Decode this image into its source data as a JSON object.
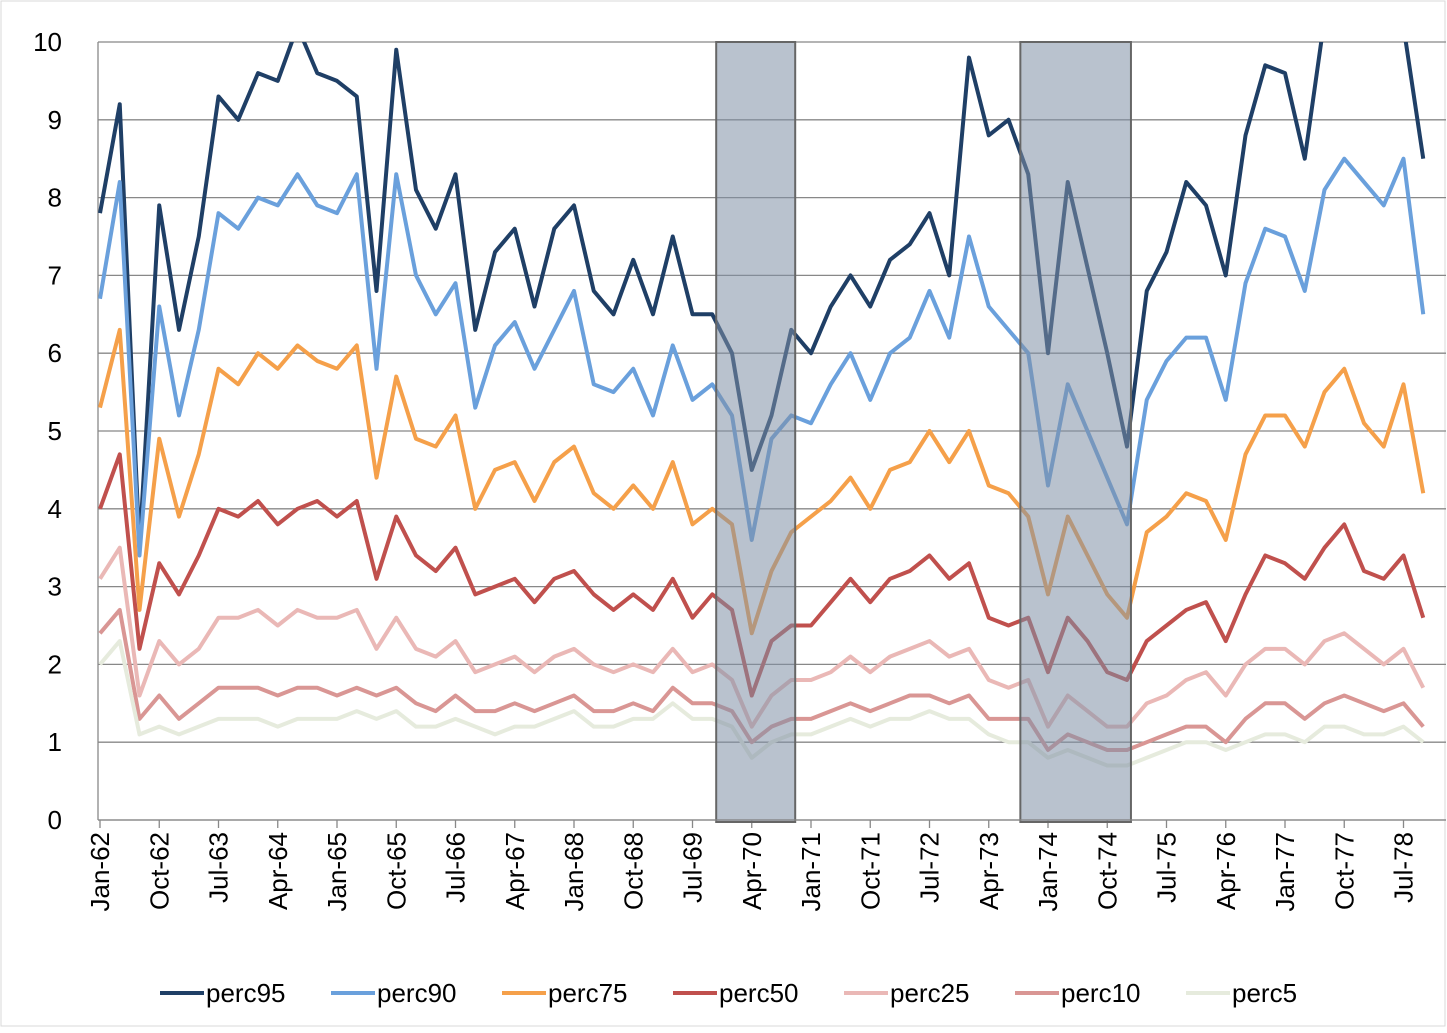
{
  "chart_data": {
    "type": "line",
    "categories": [
      "Jan-62",
      null,
      null,
      "Oct-62",
      null,
      null,
      "Jul-63",
      null,
      null,
      "Apr-64",
      null,
      null,
      "Jan-65",
      null,
      null,
      "Oct-65",
      null,
      null,
      "Jul-66",
      null,
      null,
      "Apr-67",
      null,
      null,
      "Jan-68",
      null,
      null,
      "Oct-68",
      null,
      null,
      "Jul-69",
      null,
      null,
      "Apr-70",
      null,
      null,
      "Jan-71",
      null,
      null,
      "Oct-71",
      null,
      null,
      "Jul-72",
      null,
      null,
      "Apr-73",
      null,
      null,
      "Jan-74",
      null,
      null,
      "Oct-74",
      null,
      null,
      "Jul-75",
      null,
      null,
      "Apr-76",
      null,
      null,
      "Jan-77",
      null,
      null,
      "Oct-77",
      null,
      null,
      "Jul-78",
      null
    ],
    "series": [
      {
        "name": "perc95",
        "color": "#1f3f66",
        "values": [
          7.8,
          9.2,
          3.5,
          7.9,
          6.3,
          7.5,
          9.3,
          9.0,
          9.6,
          9.5,
          10.2,
          9.6,
          9.5,
          9.3,
          6.8,
          9.9,
          8.1,
          7.6,
          8.3,
          6.3,
          7.3,
          7.6,
          6.6,
          7.6,
          7.9,
          6.8,
          6.5,
          7.2,
          6.5,
          7.5,
          6.5,
          6.5,
          6.0,
          4.5,
          5.2,
          6.3,
          6.0,
          6.6,
          7.0,
          6.6,
          7.2,
          7.4,
          7.8,
          7.0,
          9.8,
          8.8,
          9.0,
          8.3,
          6.0,
          8.2,
          7.1,
          6.0,
          4.8,
          6.8,
          7.3,
          8.2,
          7.9,
          7.0,
          8.8,
          9.7,
          9.6,
          8.5,
          10.3,
          10.5,
          10.3,
          10.2,
          10.2,
          8.5
        ]
      },
      {
        "name": "perc90",
        "color": "#6aa0dc",
        "values": [
          6.7,
          8.2,
          3.4,
          6.6,
          5.2,
          6.3,
          7.8,
          7.6,
          8.0,
          7.9,
          8.3,
          7.9,
          7.8,
          8.3,
          5.8,
          8.3,
          7.0,
          6.5,
          6.9,
          5.3,
          6.1,
          6.4,
          5.8,
          6.3,
          6.8,
          5.6,
          5.5,
          5.8,
          5.2,
          6.1,
          5.4,
          5.6,
          5.2,
          3.6,
          4.9,
          5.2,
          5.1,
          5.6,
          6.0,
          5.4,
          6.0,
          6.2,
          6.8,
          6.2,
          7.5,
          6.6,
          6.3,
          6.0,
          4.3,
          5.6,
          5.0,
          4.4,
          3.8,
          5.4,
          5.9,
          6.2,
          6.2,
          5.4,
          6.9,
          7.6,
          7.5,
          6.8,
          8.1,
          8.5,
          8.2,
          7.9,
          8.5,
          6.5
        ]
      },
      {
        "name": "perc75",
        "color": "#f5a04a",
        "values": [
          5.3,
          6.3,
          2.7,
          4.9,
          3.9,
          4.7,
          5.8,
          5.6,
          6.0,
          5.8,
          6.1,
          5.9,
          5.8,
          6.1,
          4.4,
          5.7,
          4.9,
          4.8,
          5.2,
          4.0,
          4.5,
          4.6,
          4.1,
          4.6,
          4.8,
          4.2,
          4.0,
          4.3,
          4.0,
          4.6,
          3.8,
          4.0,
          3.8,
          2.4,
          3.2,
          3.7,
          3.9,
          4.1,
          4.4,
          4.0,
          4.5,
          4.6,
          5.0,
          4.6,
          5.0,
          4.3,
          4.2,
          3.9,
          2.9,
          3.9,
          3.4,
          2.9,
          2.6,
          3.7,
          3.9,
          4.2,
          4.1,
          3.6,
          4.7,
          5.2,
          5.2,
          4.8,
          5.5,
          5.8,
          5.1,
          4.8,
          5.6,
          4.2
        ]
      },
      {
        "name": "perc50",
        "color": "#c0504d",
        "values": [
          4.0,
          4.7,
          2.2,
          3.3,
          2.9,
          3.4,
          4.0,
          3.9,
          4.1,
          3.8,
          4.0,
          4.1,
          3.9,
          4.1,
          3.1,
          3.9,
          3.4,
          3.2,
          3.5,
          2.9,
          3.0,
          3.1,
          2.8,
          3.1,
          3.2,
          2.9,
          2.7,
          2.9,
          2.7,
          3.1,
          2.6,
          2.9,
          2.7,
          1.6,
          2.3,
          2.5,
          2.5,
          2.8,
          3.1,
          2.8,
          3.1,
          3.2,
          3.4,
          3.1,
          3.3,
          2.6,
          2.5,
          2.6,
          1.9,
          2.6,
          2.3,
          1.9,
          1.8,
          2.3,
          2.5,
          2.7,
          2.8,
          2.3,
          2.9,
          3.4,
          3.3,
          3.1,
          3.5,
          3.8,
          3.2,
          3.1,
          3.4,
          2.6
        ]
      },
      {
        "name": "perc25",
        "color": "#eab8b6",
        "values": [
          3.1,
          3.5,
          1.6,
          2.3,
          2.0,
          2.2,
          2.6,
          2.6,
          2.7,
          2.5,
          2.7,
          2.6,
          2.6,
          2.7,
          2.2,
          2.6,
          2.2,
          2.1,
          2.3,
          1.9,
          2.0,
          2.1,
          1.9,
          2.1,
          2.2,
          2.0,
          1.9,
          2.0,
          1.9,
          2.2,
          1.9,
          2.0,
          1.8,
          1.2,
          1.6,
          1.8,
          1.8,
          1.9,
          2.1,
          1.9,
          2.1,
          2.2,
          2.3,
          2.1,
          2.2,
          1.8,
          1.7,
          1.8,
          1.2,
          1.6,
          1.4,
          1.2,
          1.2,
          1.5,
          1.6,
          1.8,
          1.9,
          1.6,
          2.0,
          2.2,
          2.2,
          2.0,
          2.3,
          2.4,
          2.2,
          2.0,
          2.2,
          1.7
        ]
      },
      {
        "name": "perc10",
        "color": "#d99694",
        "values": [
          2.4,
          2.7,
          1.3,
          1.6,
          1.3,
          1.5,
          1.7,
          1.7,
          1.7,
          1.6,
          1.7,
          1.7,
          1.6,
          1.7,
          1.6,
          1.7,
          1.5,
          1.4,
          1.6,
          1.4,
          1.4,
          1.5,
          1.4,
          1.5,
          1.6,
          1.4,
          1.4,
          1.5,
          1.4,
          1.7,
          1.5,
          1.5,
          1.4,
          1.0,
          1.2,
          1.3,
          1.3,
          1.4,
          1.5,
          1.4,
          1.5,
          1.6,
          1.6,
          1.5,
          1.6,
          1.3,
          1.3,
          1.3,
          0.9,
          1.1,
          1.0,
          0.9,
          0.9,
          1.0,
          1.1,
          1.2,
          1.2,
          1.0,
          1.3,
          1.5,
          1.5,
          1.3,
          1.5,
          1.6,
          1.5,
          1.4,
          1.5,
          1.2
        ]
      },
      {
        "name": "perc5",
        "color": "#e6ebdd",
        "values": [
          2.0,
          2.3,
          1.1,
          1.2,
          1.1,
          1.2,
          1.3,
          1.3,
          1.3,
          1.2,
          1.3,
          1.3,
          1.3,
          1.4,
          1.3,
          1.4,
          1.2,
          1.2,
          1.3,
          1.2,
          1.1,
          1.2,
          1.2,
          1.3,
          1.4,
          1.2,
          1.2,
          1.3,
          1.3,
          1.5,
          1.3,
          1.3,
          1.2,
          0.8,
          1.0,
          1.1,
          1.1,
          1.2,
          1.3,
          1.2,
          1.3,
          1.3,
          1.4,
          1.3,
          1.3,
          1.1,
          1.0,
          1.0,
          0.8,
          0.9,
          0.8,
          0.7,
          0.7,
          0.8,
          0.9,
          1.0,
          1.0,
          0.9,
          1.0,
          1.1,
          1.1,
          1.0,
          1.2,
          1.2,
          1.1,
          1.1,
          1.2,
          1.0
        ]
      }
    ],
    "shaded_periods": [
      [
        31.2,
        35.2
      ],
      [
        46.6,
        52.2
      ]
    ],
    "ylim": [
      0,
      10
    ],
    "yticks": [
      0,
      1,
      2,
      3,
      4,
      5,
      6,
      7,
      8,
      9,
      10
    ],
    "grid": true,
    "legend": "bottom"
  }
}
